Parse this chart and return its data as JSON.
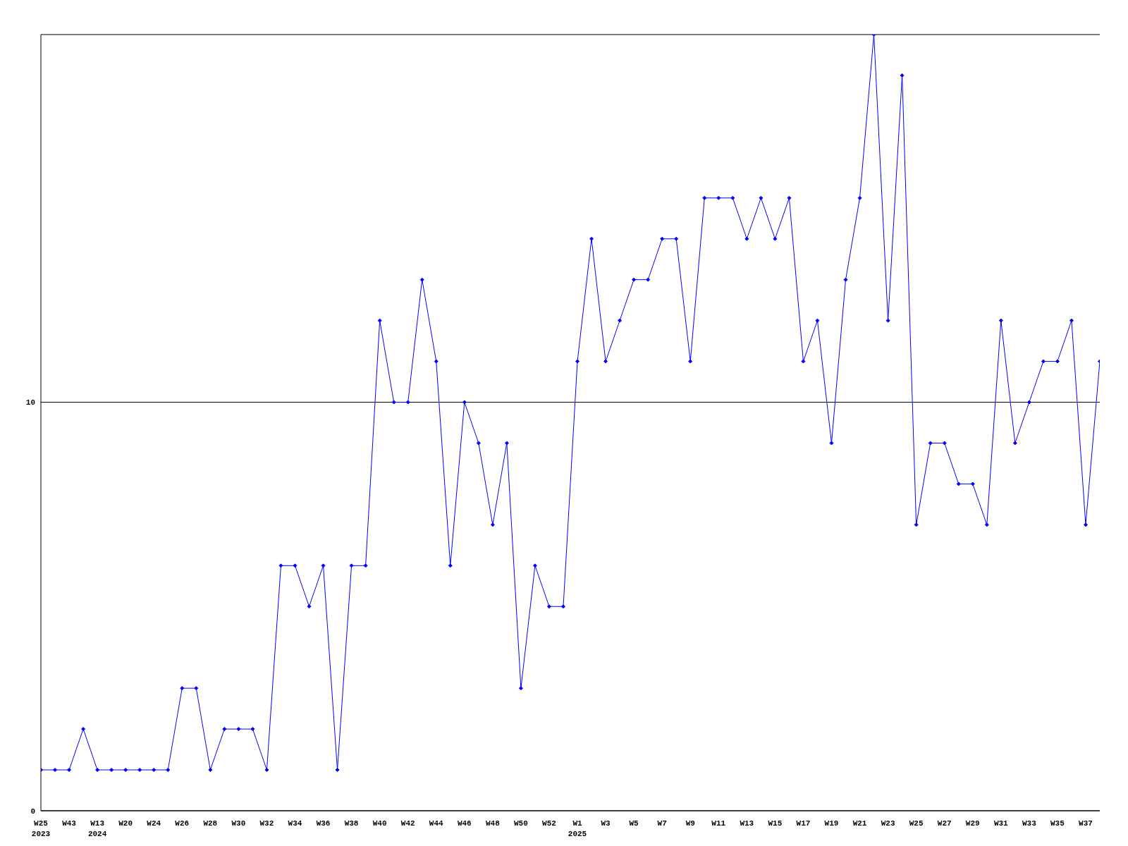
{
  "chart_data": {
    "type": "line",
    "categories": [
      "W25\n2023",
      null,
      "W43",
      null,
      "W13\n2024",
      null,
      "W20",
      null,
      "W24",
      null,
      "W26",
      null,
      "W28",
      null,
      "W30",
      null,
      "W32",
      null,
      "W34",
      null,
      "W36",
      null,
      "W38",
      null,
      "W40",
      null,
      "W42",
      null,
      "W44",
      null,
      "W46",
      null,
      "W48",
      null,
      "W50",
      null,
      "W52",
      null,
      "W1\n2025",
      null,
      "W3",
      null,
      "W5",
      null,
      "W7",
      null,
      "W9",
      null,
      "W11",
      null,
      "W13",
      null,
      "W15",
      null,
      "W17",
      null,
      "W19",
      null,
      "W21",
      null,
      "W23",
      null,
      "W25",
      null,
      "W27",
      null,
      "W29",
      null,
      "W31",
      null,
      "W33",
      null,
      "W35",
      null,
      "W37",
      null
    ],
    "values": [
      1,
      1,
      1,
      2,
      1,
      1,
      1,
      1,
      1,
      1,
      3,
      3,
      1,
      2,
      2,
      2,
      1,
      6,
      6,
      5,
      6,
      1,
      6,
      6,
      12,
      10,
      10,
      13,
      11,
      6,
      10,
      9,
      7,
      9,
      3,
      6,
      5,
      5,
      11,
      14,
      11,
      12,
      13,
      13,
      14,
      14,
      11,
      15,
      15,
      15,
      14,
      15,
      14,
      15,
      11,
      12,
      9,
      13,
      15,
      19,
      12,
      18,
      7,
      9,
      9,
      8,
      8,
      7,
      12,
      9,
      10,
      11,
      11,
      12,
      7,
      11
    ],
    "color": "#0000ff",
    "ylim": [
      0,
      19
    ],
    "yticks": [
      0,
      10
    ],
    "grid": "y",
    "marker": "diamond"
  }
}
